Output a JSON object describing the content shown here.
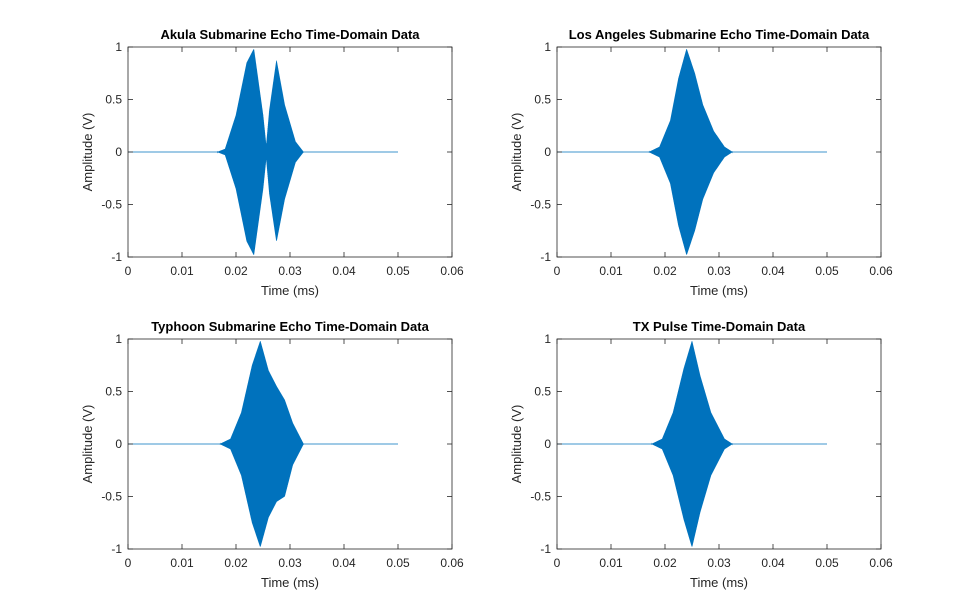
{
  "chart_data": [
    {
      "type": "line",
      "title": "Akula Submarine Echo Time-Domain Data",
      "xlabel": "Time (ms)",
      "ylabel": "Amplitude (V)",
      "xlim": [
        0,
        0.06
      ],
      "ylim": [
        -1,
        1
      ],
      "xticks": [
        0,
        0.01,
        0.02,
        0.03,
        0.04,
        0.05,
        0.06
      ],
      "xtick_labels": [
        "0",
        "0.01",
        "0.02",
        "0.03",
        "0.04",
        "0.05",
        "0.06"
      ],
      "yticks": [
        1,
        0.5,
        0,
        -0.5,
        -1
      ],
      "ytick_labels": [
        "1",
        "0.5",
        "0",
        "-0.5",
        "-1"
      ],
      "grid": false,
      "color": "#0072BD",
      "series": [
        {
          "x_range": [
            0,
            0.05
          ],
          "envelope": {
            "x": [
              0,
              0.0165,
              0.018,
              0.02,
              0.022,
              0.0233,
              0.025,
              0.0256,
              0.0262,
              0.0275,
              0.029,
              0.031,
              0.0325,
              0.05
            ],
            "upper": [
              0,
              0,
              0.03,
              0.35,
              0.85,
              0.98,
              0.35,
              0.05,
              0.4,
              0.87,
              0.45,
              0.1,
              0,
              0
            ],
            "lower": [
              0,
              0,
              -0.03,
              -0.35,
              -0.85,
              -0.98,
              -0.35,
              -0.05,
              -0.4,
              -0.85,
              -0.45,
              -0.1,
              0,
              0
            ]
          }
        }
      ]
    },
    {
      "type": "line",
      "title": "Los Angeles Submarine Echo Time-Domain Data",
      "xlabel": "Time (ms)",
      "ylabel": "Amplitude (V)",
      "xlim": [
        0,
        0.06
      ],
      "ylim": [
        -1,
        1
      ],
      "xticks": [
        0,
        0.01,
        0.02,
        0.03,
        0.04,
        0.05,
        0.06
      ],
      "xtick_labels": [
        "0",
        "0.01",
        "0.02",
        "0.03",
        "0.04",
        "0.05",
        "0.06"
      ],
      "yticks": [
        1,
        0.5,
        0,
        -0.5,
        -1
      ],
      "ytick_labels": [
        "1",
        "0.5",
        "0",
        "-0.5",
        "-1"
      ],
      "grid": false,
      "color": "#0072BD",
      "series": [
        {
          "x_range": [
            0,
            0.05
          ],
          "envelope": {
            "x": [
              0,
              0.017,
              0.019,
              0.021,
              0.0225,
              0.024,
              0.0255,
              0.027,
              0.029,
              0.031,
              0.0325,
              0.05
            ],
            "upper": [
              0,
              0,
              0.05,
              0.3,
              0.7,
              0.98,
              0.75,
              0.45,
              0.2,
              0.05,
              0,
              0
            ],
            "lower": [
              0,
              0,
              -0.05,
              -0.3,
              -0.7,
              -0.98,
              -0.75,
              -0.45,
              -0.2,
              -0.05,
              0,
              0
            ]
          }
        }
      ]
    },
    {
      "type": "line",
      "title": "Typhoon Submarine Echo Time-Domain Data",
      "xlabel": "Time (ms)",
      "ylabel": "Amplitude (V)",
      "xlim": [
        0,
        0.06
      ],
      "ylim": [
        -1,
        1
      ],
      "xticks": [
        0,
        0.01,
        0.02,
        0.03,
        0.04,
        0.05,
        0.06
      ],
      "xtick_labels": [
        "0",
        "0.01",
        "0.02",
        "0.03",
        "0.04",
        "0.05",
        "0.06"
      ],
      "yticks": [
        1,
        0.5,
        0,
        -0.5,
        -1
      ],
      "ytick_labels": [
        "1",
        "0.5",
        "0",
        "-0.5",
        "-1"
      ],
      "grid": false,
      "color": "#0072BD",
      "series": [
        {
          "x_range": [
            0,
            0.05
          ],
          "envelope": {
            "x": [
              0,
              0.017,
              0.019,
              0.021,
              0.023,
              0.0245,
              0.026,
              0.0275,
              0.029,
              0.0305,
              0.0325,
              0.05
            ],
            "upper": [
              0,
              0,
              0.05,
              0.3,
              0.75,
              0.98,
              0.7,
              0.55,
              0.42,
              0.2,
              0,
              0
            ],
            "lower": [
              0,
              0,
              -0.05,
              -0.3,
              -0.75,
              -0.98,
              -0.7,
              -0.55,
              -0.5,
              -0.2,
              0,
              0
            ]
          }
        }
      ]
    },
    {
      "type": "line",
      "title": "TX Pulse Time-Domain Data",
      "xlabel": "Time (ms)",
      "ylabel": "Amplitude (V)",
      "xlim": [
        0,
        0.06
      ],
      "ylim": [
        -1,
        1
      ],
      "xticks": [
        0,
        0.01,
        0.02,
        0.03,
        0.04,
        0.05,
        0.06
      ],
      "xtick_labels": [
        "0",
        "0.01",
        "0.02",
        "0.03",
        "0.04",
        "0.05",
        "0.06"
      ],
      "yticks": [
        1,
        0.5,
        0,
        -0.5,
        -1
      ],
      "ytick_labels": [
        "1",
        "0.5",
        "0",
        "-0.5",
        "-1"
      ],
      "grid": false,
      "color": "#0072BD",
      "series": [
        {
          "x_range": [
            0,
            0.05
          ],
          "envelope": {
            "x": [
              0,
              0.0175,
              0.0195,
              0.0215,
              0.0235,
              0.025,
              0.0265,
              0.0285,
              0.031,
              0.0325,
              0.05
            ],
            "upper": [
              0,
              0,
              0.05,
              0.3,
              0.72,
              0.98,
              0.65,
              0.3,
              0.05,
              0,
              0
            ],
            "lower": [
              0,
              0,
              -0.05,
              -0.3,
              -0.72,
              -0.98,
              -0.65,
              -0.3,
              -0.05,
              0,
              0
            ]
          }
        }
      ]
    }
  ]
}
